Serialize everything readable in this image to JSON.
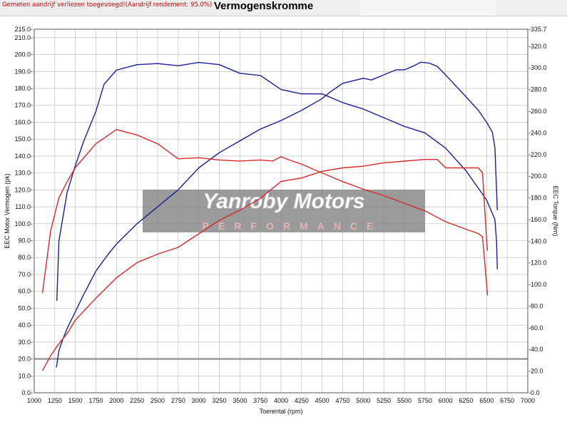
{
  "header": {
    "note": "Gemeten aandrijf verliezen toegevoegd!(Aandrijf rendement: 95.0%)",
    "title": "Vermogenskromme"
  },
  "watermark": {
    "brand": "Yanroby Motors",
    "tagline": "PERFORMANCE"
  },
  "chart_data": {
    "type": "line",
    "title": "Vermogenskromme",
    "xlabel": "Toerental (rpm)",
    "ylabel": "EEC Motor Vermogen (pk)",
    "y2label": "EEC Torque (Nm)",
    "xlim": [
      1000,
      7000
    ],
    "ylim": [
      0,
      215
    ],
    "y2lim": [
      0,
      335.7
    ],
    "x_ticks": [
      1000,
      1250,
      1500,
      1750,
      2000,
      2250,
      2500,
      2750,
      3000,
      3250,
      3500,
      3750,
      4000,
      4250,
      4500,
      4750,
      5000,
      5250,
      5500,
      5750,
      6000,
      6250,
      6500,
      6750,
      7000
    ],
    "y_ticks": [
      0,
      10,
      20,
      30,
      40,
      50,
      60,
      70,
      80,
      90,
      100,
      110,
      120,
      130,
      140,
      150,
      160,
      170,
      180,
      190,
      200,
      210,
      215
    ],
    "y2_ticks": [
      0,
      20,
      40,
      60,
      80,
      100,
      120,
      140,
      160,
      180,
      200,
      220,
      240,
      260,
      280,
      300,
      320,
      335.7
    ],
    "grid": true,
    "reference_line_y": 20,
    "colors": {
      "blue": "#1a1f96",
      "red": "#d42a2a",
      "grid": "#b8b8b8",
      "refline": "#9a9a9a"
    },
    "series": [
      {
        "color": "#1a1f96",
        "axis": "left",
        "points": [
          [
            1270,
            15
          ],
          [
            1300,
            25
          ],
          [
            1350,
            32
          ],
          [
            1400,
            38
          ],
          [
            1500,
            48
          ],
          [
            1600,
            58
          ],
          [
            1750,
            72
          ],
          [
            1900,
            82
          ],
          [
            2000,
            88
          ],
          [
            2250,
            100
          ],
          [
            2500,
            110
          ],
          [
            2750,
            120
          ],
          [
            3000,
            133
          ],
          [
            3250,
            142
          ],
          [
            3500,
            149
          ],
          [
            3750,
            156
          ],
          [
            4000,
            161
          ],
          [
            4250,
            167
          ],
          [
            4500,
            174
          ],
          [
            4600,
            178
          ],
          [
            4750,
            183
          ],
          [
            5000,
            186
          ],
          [
            5100,
            185
          ],
          [
            5250,
            188
          ],
          [
            5400,
            191
          ],
          [
            5500,
            191
          ],
          [
            5600,
            193
          ],
          [
            5700,
            195.5
          ],
          [
            5800,
            195
          ],
          [
            5900,
            193
          ],
          [
            6000,
            188
          ],
          [
            6250,
            175
          ],
          [
            6400,
            167
          ],
          [
            6500,
            160
          ],
          [
            6570,
            154
          ],
          [
            6600,
            145
          ],
          [
            6620,
            120
          ],
          [
            6630,
            108
          ]
        ]
      },
      {
        "color": "#1a1f96",
        "axis": "right",
        "points": [
          [
            1275,
            85
          ],
          [
            1300,
            140
          ],
          [
            1400,
            185
          ],
          [
            1500,
            210
          ],
          [
            1600,
            232
          ],
          [
            1750,
            260
          ],
          [
            1850,
            285
          ],
          [
            2000,
            298
          ],
          [
            2250,
            303
          ],
          [
            2500,
            304
          ],
          [
            2750,
            302
          ],
          [
            3000,
            305
          ],
          [
            3250,
            303
          ],
          [
            3500,
            295
          ],
          [
            3750,
            293
          ],
          [
            4000,
            280
          ],
          [
            4250,
            276
          ],
          [
            4500,
            276
          ],
          [
            4750,
            268
          ],
          [
            5000,
            262
          ],
          [
            5250,
            254
          ],
          [
            5500,
            246
          ],
          [
            5750,
            240
          ],
          [
            6000,
            226
          ],
          [
            6250,
            205
          ],
          [
            6500,
            178
          ],
          [
            6600,
            160
          ],
          [
            6620,
            140
          ],
          [
            6630,
            114
          ]
        ]
      },
      {
        "color": "#d42a2a",
        "axis": "left",
        "points": [
          [
            1100,
            13
          ],
          [
            1200,
            22
          ],
          [
            1300,
            29
          ],
          [
            1400,
            35
          ],
          [
            1500,
            43
          ],
          [
            1750,
            56
          ],
          [
            2000,
            68
          ],
          [
            2250,
            77
          ],
          [
            2500,
            82
          ],
          [
            2750,
            86
          ],
          [
            3000,
            94
          ],
          [
            3250,
            102
          ],
          [
            3500,
            108
          ],
          [
            3750,
            115
          ],
          [
            4000,
            125
          ],
          [
            4250,
            127
          ],
          [
            4500,
            131
          ],
          [
            4750,
            133
          ],
          [
            5000,
            134
          ],
          [
            5250,
            136
          ],
          [
            5500,
            137
          ],
          [
            5750,
            138
          ],
          [
            5900,
            138
          ],
          [
            6000,
            133
          ],
          [
            6250,
            133
          ],
          [
            6400,
            133
          ],
          [
            6450,
            130
          ],
          [
            6500,
            90
          ],
          [
            6510,
            84
          ]
        ]
      },
      {
        "color": "#d42a2a",
        "axis": "right",
        "points": [
          [
            1100,
            92
          ],
          [
            1200,
            150
          ],
          [
            1300,
            180
          ],
          [
            1400,
            195
          ],
          [
            1500,
            208
          ],
          [
            1750,
            230
          ],
          [
            2000,
            243
          ],
          [
            2250,
            238
          ],
          [
            2500,
            230
          ],
          [
            2750,
            216
          ],
          [
            3000,
            217
          ],
          [
            3250,
            215
          ],
          [
            3500,
            214
          ],
          [
            3750,
            215
          ],
          [
            3900,
            214
          ],
          [
            4000,
            218
          ],
          [
            4100,
            215
          ],
          [
            4250,
            211
          ],
          [
            4500,
            203
          ],
          [
            4750,
            195
          ],
          [
            5000,
            188
          ],
          [
            5250,
            182
          ],
          [
            5500,
            175
          ],
          [
            5750,
            168
          ],
          [
            6000,
            158
          ],
          [
            6250,
            151
          ],
          [
            6400,
            147
          ],
          [
            6450,
            144
          ],
          [
            6500,
            100
          ],
          [
            6510,
            90
          ]
        ]
      }
    ]
  }
}
